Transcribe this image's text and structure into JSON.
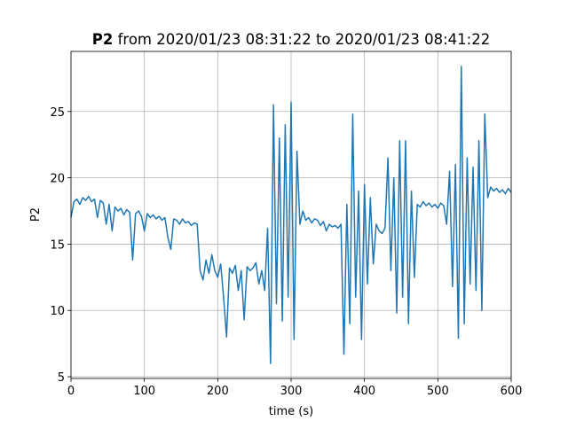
{
  "chart_data": {
    "type": "line",
    "title_name": "P2",
    "title": "from 2020/01/23 08:31:22 to 2020/01/23 08:41:22",
    "xlabel": "time (s)",
    "ylabel": "P2",
    "xlim": [
      0,
      600
    ],
    "ylim": [
      4.87,
      29.53
    ],
    "xticks": [
      0,
      100,
      200,
      300,
      400,
      500,
      600
    ],
    "yticks": [
      5,
      10,
      15,
      20,
      25
    ],
    "grid": true,
    "x": [
      0,
      4,
      8,
      12,
      16,
      20,
      24,
      28,
      32,
      36,
      40,
      44,
      48,
      52,
      56,
      60,
      64,
      68,
      72,
      76,
      80,
      84,
      88,
      92,
      96,
      100,
      104,
      108,
      112,
      116,
      120,
      124,
      128,
      132,
      136,
      140,
      144,
      148,
      152,
      156,
      160,
      164,
      168,
      172,
      176,
      180,
      184,
      188,
      192,
      196,
      200,
      204,
      208,
      212,
      216,
      220,
      224,
      228,
      232,
      236,
      240,
      244,
      248,
      252,
      256,
      260,
      264,
      268,
      272,
      276,
      280,
      284,
      288,
      292,
      296,
      300,
      304,
      308,
      312,
      316,
      320,
      324,
      328,
      332,
      336,
      340,
      344,
      348,
      352,
      356,
      360,
      364,
      368,
      372,
      376,
      380,
      384,
      388,
      392,
      396,
      400,
      404,
      408,
      412,
      416,
      420,
      424,
      428,
      432,
      436,
      440,
      444,
      448,
      452,
      456,
      460,
      464,
      468,
      472,
      476,
      480,
      484,
      488,
      492,
      496,
      500,
      504,
      508,
      512,
      516,
      520,
      524,
      528,
      532,
      536,
      540,
      544,
      548,
      552,
      556,
      560,
      564,
      568,
      572,
      576,
      580,
      584,
      588,
      592,
      596,
      600
    ],
    "series": [
      {
        "name": "P2",
        "color": "#1f77b4",
        "values": [
          17.0,
          18.2,
          18.4,
          18.0,
          18.5,
          18.3,
          18.6,
          18.2,
          18.4,
          17.0,
          18.3,
          18.1,
          16.5,
          18.0,
          16.0,
          17.8,
          17.5,
          17.7,
          17.2,
          17.6,
          17.4,
          13.8,
          17.3,
          17.5,
          17.1,
          16.0,
          17.3,
          17.0,
          17.2,
          16.9,
          17.1,
          16.8,
          17.0,
          15.5,
          14.6,
          16.9,
          16.8,
          16.5,
          16.9,
          16.6,
          16.7,
          16.4,
          16.6,
          16.5,
          13.0,
          12.3,
          13.8,
          12.8,
          14.2,
          13.0,
          12.5,
          13.5,
          11.0,
          8.0,
          13.2,
          12.8,
          13.4,
          11.5,
          13.0,
          9.3,
          13.3,
          13.0,
          13.2,
          13.6,
          12.0,
          13.0,
          11.5,
          16.2,
          6.0,
          25.5,
          10.5,
          23.0,
          9.2,
          24.0,
          11.0,
          25.7,
          7.8,
          22.0,
          16.5,
          17.5,
          16.8,
          17.0,
          16.6,
          16.9,
          16.8,
          16.4,
          16.7,
          16.0,
          16.5,
          16.3,
          16.4,
          16.2,
          16.5,
          6.7,
          18.0,
          9.0,
          24.8,
          11.0,
          19.0,
          7.8,
          19.5,
          12.0,
          18.5,
          13.5,
          16.5,
          16.0,
          15.8,
          16.2,
          21.5,
          13.0,
          20.0,
          9.8,
          22.8,
          11.0,
          22.8,
          9.0,
          19.0,
          12.5,
          18.0,
          17.8,
          18.2,
          17.9,
          18.1,
          17.8,
          18.0,
          17.7,
          18.1,
          17.9,
          16.5,
          20.5,
          11.8,
          21.0,
          7.9,
          28.4,
          9.0,
          21.5,
          12.0,
          20.8,
          11.5,
          22.8,
          10.0,
          24.8,
          18.5,
          19.3,
          19.0,
          19.2,
          18.9,
          19.1,
          18.8,
          19.2,
          18.9
        ]
      }
    ]
  }
}
